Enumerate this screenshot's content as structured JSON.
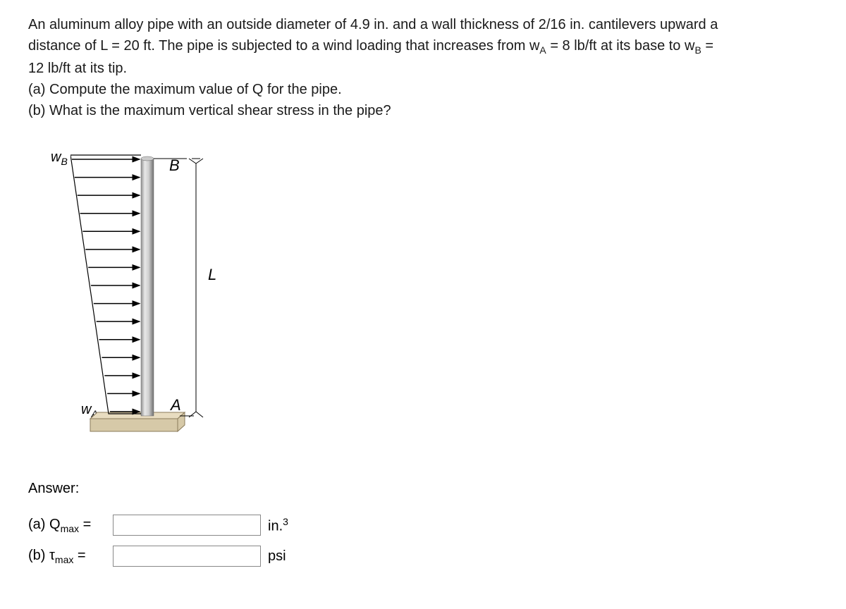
{
  "problem": {
    "line1": "An aluminum alloy pipe with an outside diameter of 4.9 in. and a wall thickness of 2/16 in. cantilevers upward a",
    "line2_pre": "distance of L = 20 ft. The pipe is subjected to a wind loading that increases from w",
    "line2_sub1": "A",
    "line2_mid": " = 8 lb/ft at its base to w",
    "line2_sub2": "B",
    "line2_post": " =",
    "line3": "12 lb/ft at its tip.",
    "part_a": "(a) Compute the maximum value of Q for the pipe.",
    "part_b": "(b) What is the maximum vertical shear stress in the pipe?"
  },
  "diagram": {
    "label_wB_main": "w",
    "label_wB_sub": "B",
    "label_wA_main": "w",
    "label_wA_sub": "A",
    "label_B": "B",
    "label_A": "A",
    "label_L": "L",
    "colors": {
      "base_fill": "#d6c9a8",
      "base_top": "#e8dcc0",
      "base_stroke": "#8a7a5a",
      "pipe_light": "#e0e0e0",
      "pipe_mid": "#b0b0b0",
      "pipe_dark": "#808080",
      "arrow": "#000000"
    },
    "arrows_count": 15
  },
  "answer": {
    "heading": "Answer:",
    "a_label_pre": "(a) Q",
    "a_label_sub": "max",
    "a_label_post": " =",
    "a_value": "",
    "a_unit_pre": "in.",
    "a_unit_sup": "3",
    "b_label_pre": "(b) τ",
    "b_label_sub": "max",
    "b_label_post": " =",
    "b_value": "",
    "b_unit": "psi"
  }
}
